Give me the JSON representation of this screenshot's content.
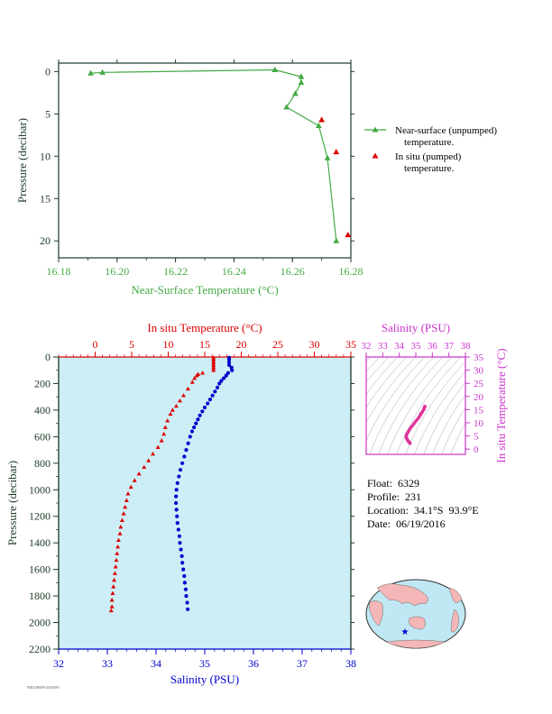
{
  "colors": {
    "green": "#44aa44",
    "red": "#dd0000",
    "blue": "#0000cc",
    "magenta": "#cc33cc",
    "panel_bg": "#cdeef6",
    "axis_dark": "#1c3a26",
    "land": "#f4b6b6",
    "ocean": "#bfe8f4"
  },
  "info": {
    "float": "Float:  6329",
    "profile": "Profile:  231",
    "location": "Location:  34.1°S  93.9°E",
    "date": "Date:  06/19/2016"
  },
  "footer_note": "FHDTHEFS-2016059",
  "chart_data": [
    {
      "id": "near_surface",
      "type": "line",
      "xlabel": "Near-Surface Temperature (°C)",
      "ylabel": "Pressure (decibar)",
      "xlim": [
        16.18,
        16.28
      ],
      "ylim": [
        22,
        -1
      ],
      "xticks": [
        "16.18",
        "16.20",
        "16.22",
        "16.24",
        "16.26",
        "16.28"
      ],
      "yticks": [
        "0",
        "5",
        "10",
        "15",
        "20"
      ],
      "legend_position": "right",
      "series": [
        {
          "name": "Near-surface (unpumped)",
          "name_line2": "temperature.",
          "marker": "triangle",
          "line": true,
          "points": [
            [
              16.191,
              0.2
            ],
            [
              16.195,
              0.1
            ],
            [
              16.254,
              -0.2
            ],
            [
              16.263,
              0.6
            ],
            [
              16.263,
              1.3
            ],
            [
              16.261,
              2.6
            ],
            [
              16.258,
              4.2
            ],
            [
              16.269,
              6.4
            ],
            [
              16.272,
              10.2
            ],
            [
              16.275,
              20.0
            ]
          ]
        },
        {
          "name": "In situ (pumped)",
          "name_line2": "temperature.",
          "marker": "triangle",
          "line": false,
          "points": [
            [
              16.27,
              5.7
            ],
            [
              16.275,
              9.5
            ],
            [
              16.279,
              19.3
            ]
          ]
        }
      ]
    },
    {
      "id": "profile",
      "type": "scatter",
      "top_xlabel": "In situ Temperature (°C)",
      "bottom_xlabel": "Salinity (PSU)",
      "ylabel": "Pressure (decibar)",
      "top_xlim": [
        -5,
        35
      ],
      "top_xticks": [
        "0",
        "5",
        "10",
        "15",
        "20",
        "25",
        "30",
        "35"
      ],
      "bottom_xlim": [
        32,
        38
      ],
      "bottom_xticks": [
        "32",
        "33",
        "34",
        "35",
        "36",
        "37",
        "38"
      ],
      "ylim": [
        2200,
        0
      ],
      "yticks": [
        "0",
        "200",
        "400",
        "600",
        "800",
        "1000",
        "1200",
        "1400",
        "1600",
        "1800",
        "2000",
        "2200"
      ],
      "temperature": [
        [
          16.2,
          5
        ],
        [
          16.2,
          20
        ],
        [
          16.2,
          40
        ],
        [
          16.2,
          60
        ],
        [
          16.2,
          80
        ],
        [
          16.2,
          100
        ],
        [
          14.7,
          120
        ],
        [
          14.1,
          130
        ],
        [
          13.9,
          140
        ],
        [
          13.6,
          160
        ],
        [
          13.3,
          190
        ],
        [
          12.7,
          240
        ],
        [
          12.1,
          290
        ],
        [
          11.6,
          330
        ],
        [
          11.1,
          370
        ],
        [
          10.6,
          400
        ],
        [
          10.3,
          430
        ],
        [
          9.9,
          480
        ],
        [
          9.6,
          530
        ],
        [
          9.4,
          580
        ],
        [
          9.1,
          630
        ],
        [
          8.6,
          680
        ],
        [
          7.9,
          730
        ],
        [
          7.3,
          780
        ],
        [
          6.7,
          830
        ],
        [
          6.0,
          880
        ],
        [
          5.4,
          930
        ],
        [
          4.9,
          980
        ],
        [
          4.5,
          1030
        ],
        [
          4.3,
          1080
        ],
        [
          4.1,
          1130
        ],
        [
          3.9,
          1180
        ],
        [
          3.7,
          1230
        ],
        [
          3.5,
          1280
        ],
        [
          3.4,
          1330
        ],
        [
          3.2,
          1380
        ],
        [
          3.1,
          1430
        ],
        [
          3.0,
          1480
        ],
        [
          2.9,
          1530
        ],
        [
          2.8,
          1580
        ],
        [
          2.7,
          1630
        ],
        [
          2.6,
          1680
        ],
        [
          2.5,
          1730
        ],
        [
          2.4,
          1780
        ],
        [
          2.3,
          1830
        ],
        [
          2.3,
          1880
        ],
        [
          2.2,
          1910
        ]
      ],
      "salinity": [
        [
          35.5,
          5
        ],
        [
          35.5,
          20
        ],
        [
          35.5,
          40
        ],
        [
          35.5,
          60
        ],
        [
          35.55,
          80
        ],
        [
          35.56,
          100
        ],
        [
          35.48,
          120
        ],
        [
          35.44,
          140
        ],
        [
          35.39,
          160
        ],
        [
          35.34,
          180
        ],
        [
          35.3,
          200
        ],
        [
          35.26,
          230
        ],
        [
          35.21,
          260
        ],
        [
          35.16,
          290
        ],
        [
          35.11,
          320
        ],
        [
          35.06,
          350
        ],
        [
          35.0,
          380
        ],
        [
          34.95,
          410
        ],
        [
          34.9,
          440
        ],
        [
          34.86,
          470
        ],
        [
          34.82,
          500
        ],
        [
          34.78,
          530
        ],
        [
          34.74,
          560
        ],
        [
          34.7,
          600
        ],
        [
          34.66,
          650
        ],
        [
          34.62,
          700
        ],
        [
          34.58,
          750
        ],
        [
          34.54,
          800
        ],
        [
          34.5,
          850
        ],
        [
          34.47,
          900
        ],
        [
          34.44,
          950
        ],
        [
          34.42,
          1000
        ],
        [
          34.41,
          1050
        ],
        [
          34.41,
          1100
        ],
        [
          34.42,
          1150
        ],
        [
          34.43,
          1200
        ],
        [
          34.44,
          1250
        ],
        [
          34.46,
          1300
        ],
        [
          34.48,
          1350
        ],
        [
          34.49,
          1400
        ],
        [
          34.51,
          1450
        ],
        [
          34.53,
          1500
        ],
        [
          34.54,
          1550
        ],
        [
          34.56,
          1600
        ],
        [
          34.58,
          1650
        ],
        [
          34.59,
          1700
        ],
        [
          34.61,
          1750
        ],
        [
          34.62,
          1800
        ],
        [
          34.64,
          1850
        ],
        [
          34.65,
          1900
        ]
      ]
    },
    {
      "id": "ts_diagram",
      "type": "scatter",
      "top_xlabel": "Salinity (PSU)",
      "ylabel_right": "In situ Temperature (°C)",
      "xlim": [
        32,
        38
      ],
      "xticks": [
        "32",
        "33",
        "34",
        "35",
        "36",
        "37",
        "38"
      ],
      "ylim": [
        -2,
        35
      ],
      "yticks": [
        "0",
        "5",
        "10",
        "15",
        "20",
        "25",
        "30",
        "35"
      ],
      "points": [
        [
          34.65,
          2.2
        ],
        [
          34.6,
          2.6
        ],
        [
          34.55,
          3.0
        ],
        [
          34.5,
          3.4
        ],
        [
          34.46,
          3.9
        ],
        [
          34.43,
          4.4
        ],
        [
          34.42,
          5.0
        ],
        [
          34.45,
          5.6
        ],
        [
          34.52,
          6.4
        ],
        [
          34.6,
          7.2
        ],
        [
          34.68,
          8.0
        ],
        [
          34.78,
          8.8
        ],
        [
          34.88,
          9.6
        ],
        [
          34.98,
          10.4
        ],
        [
          35.08,
          11.2
        ],
        [
          35.18,
          12.0
        ],
        [
          35.26,
          12.8
        ],
        [
          35.32,
          13.5
        ],
        [
          35.4,
          14.2
        ],
        [
          35.48,
          15.0
        ],
        [
          35.52,
          15.8
        ],
        [
          35.55,
          16.2
        ]
      ]
    }
  ]
}
